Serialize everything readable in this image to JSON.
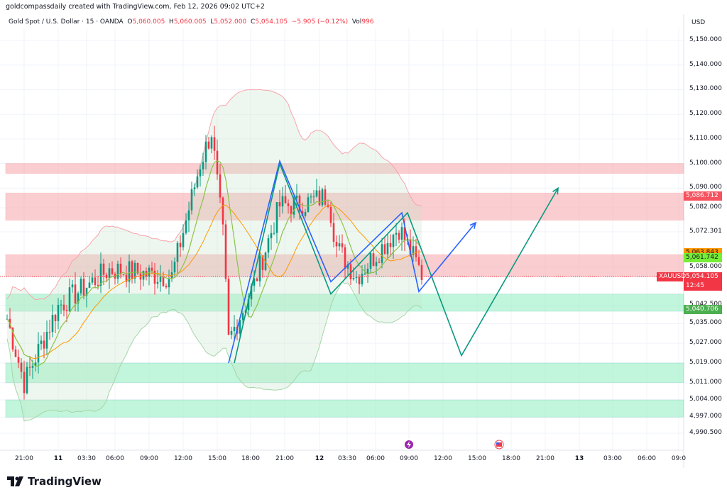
{
  "attribution": "goldcompassdaily created with TradingView.com, Feb 12, 2026 09:02 UTC+2",
  "legend": {
    "symbol": "Gold Spot / U.S. Dollar · 15 · OANDA",
    "o_label": "O",
    "o": "5,060.005",
    "h_label": "H",
    "h": "5,060.005",
    "l_label": "L",
    "l": "5,052.000",
    "c_label": "C",
    "c": "5,054.105",
    "change": "−5.905 (−0.12%)",
    "vol_label": "Vol",
    "vol": "996"
  },
  "currency": "USD",
  "price_axis": [
    "5,150.000",
    "5,140.000",
    "5,130.000",
    "5,120.000",
    "5,110.000",
    "5,100.000",
    "5,090.000",
    "5,082.000",
    "5,072.301",
    "5,058.000",
    "5,042.500",
    "5,035.000",
    "5,027.000",
    "5,019.000",
    "5,011.000",
    "5,004.000",
    "4,997.000",
    "4,990.500"
  ],
  "price_axis_values": [
    5150,
    5140,
    5130,
    5120,
    5110,
    5100,
    5090,
    5082,
    5072.301,
    5058,
    5042.5,
    5035,
    5027,
    5019,
    5011,
    5004,
    4997,
    4990.5
  ],
  "badges": [
    {
      "text": "5,086.712",
      "price": 5086.712,
      "color": "#f7525f",
      "fg": "#ffffff"
    },
    {
      "text": "5,063.843",
      "price": 5063.843,
      "color": "#ff9800",
      "fg": "#131722"
    },
    {
      "text": "5,061.742",
      "price": 5061.742,
      "color": "#76ee36",
      "fg": "#131722"
    },
    {
      "text": "5,054.105",
      "sub": "12:45",
      "price": 5054.105,
      "color": "#f23645",
      "fg": "#ffffff"
    },
    {
      "text": "5,040.706",
      "price": 5040.706,
      "color": "#4caf50",
      "fg": "#ffffff"
    }
  ],
  "symbol_tag": "XAUUSD",
  "time_axis": [
    {
      "t": "21:00",
      "bold": false
    },
    {
      "t": "11",
      "bold": true
    },
    {
      "t": "03:30",
      "bold": false
    },
    {
      "t": "06:00",
      "bold": false
    },
    {
      "t": "09:00",
      "bold": false
    },
    {
      "t": "12:00",
      "bold": false
    },
    {
      "t": "15:00",
      "bold": false
    },
    {
      "t": "18:00",
      "bold": false
    },
    {
      "t": "21:00",
      "bold": false
    },
    {
      "t": "12",
      "bold": true
    },
    {
      "t": "03:30",
      "bold": false
    },
    {
      "t": "06:00",
      "bold": false
    },
    {
      "t": "09:00",
      "bold": false
    },
    {
      "t": "12:00",
      "bold": false
    },
    {
      "t": "15:00",
      "bold": false
    },
    {
      "t": "18:00",
      "bold": false
    },
    {
      "t": "21:00",
      "bold": false
    },
    {
      "t": "13",
      "bold": true
    },
    {
      "t": "03:00",
      "bold": false
    },
    {
      "t": "06:00",
      "bold": false
    },
    {
      "t": "09:0",
      "bold": false
    }
  ],
  "brand": "TradingView",
  "colors": {
    "up": "#089981",
    "down": "#f23645",
    "resistance_zone": "#f7a5ab",
    "support_zone": "#8ff0c0",
    "blue_path": "#2962ff",
    "green_path": "#089981",
    "ma_fast": "#8bc34a",
    "ma_slow": "#ff9800"
  },
  "chart_data": {
    "type": "candlestick",
    "symbol": "XAUUSD",
    "interval": "15",
    "approx_close_path": [
      [
        "10 19:30",
        5037
      ],
      [
        "10 21:00",
        5011
      ],
      [
        "11 00:00",
        5042
      ],
      [
        "11 04:30",
        5057
      ],
      [
        "11 10:00",
        5054
      ],
      [
        "11 12:30",
        5100
      ],
      [
        "11 13:30",
        5113
      ],
      [
        "11 14:30",
        5071
      ],
      [
        "11 15:00",
        5028
      ],
      [
        "11 17:15",
        5051
      ],
      [
        "11 19:30",
        5083
      ],
      [
        "11 21:15",
        5083
      ],
      [
        "11 23:45",
        5087
      ],
      [
        "12 00:30",
        5066
      ],
      [
        "12 02:15",
        5054
      ],
      [
        "12 06:00",
        5074
      ],
      [
        "12 08:00",
        5055
      ]
    ],
    "resistance_zones": [
      [
        5096,
        5100
      ],
      [
        5077,
        5088
      ],
      [
        5054,
        5063
      ]
    ],
    "support_zones": [
      [
        5040,
        5047
      ],
      [
        5011,
        5019
      ],
      [
        4997,
        5004
      ]
    ],
    "projection_blue": [
      [
        "11 15:00",
        5019
      ],
      [
        "11 19:30",
        5101
      ],
      [
        "12 00:00",
        5052
      ],
      [
        "12 06:15",
        5080
      ],
      [
        "12 07:45",
        5048
      ],
      [
        "12 12:45",
        5076
      ]
    ],
    "projection_green": [
      [
        "11 15:30",
        5019
      ],
      [
        "11 19:30",
        5100
      ],
      [
        "12 00:00",
        5047
      ],
      [
        "12 06:45",
        5080
      ],
      [
        "12 11:30",
        5022
      ],
      [
        "12 20:00",
        5090
      ]
    ],
    "events": [
      "lightning-icon",
      "us-flag-icon"
    ],
    "yrange": [
      4985,
      5160
    ]
  }
}
